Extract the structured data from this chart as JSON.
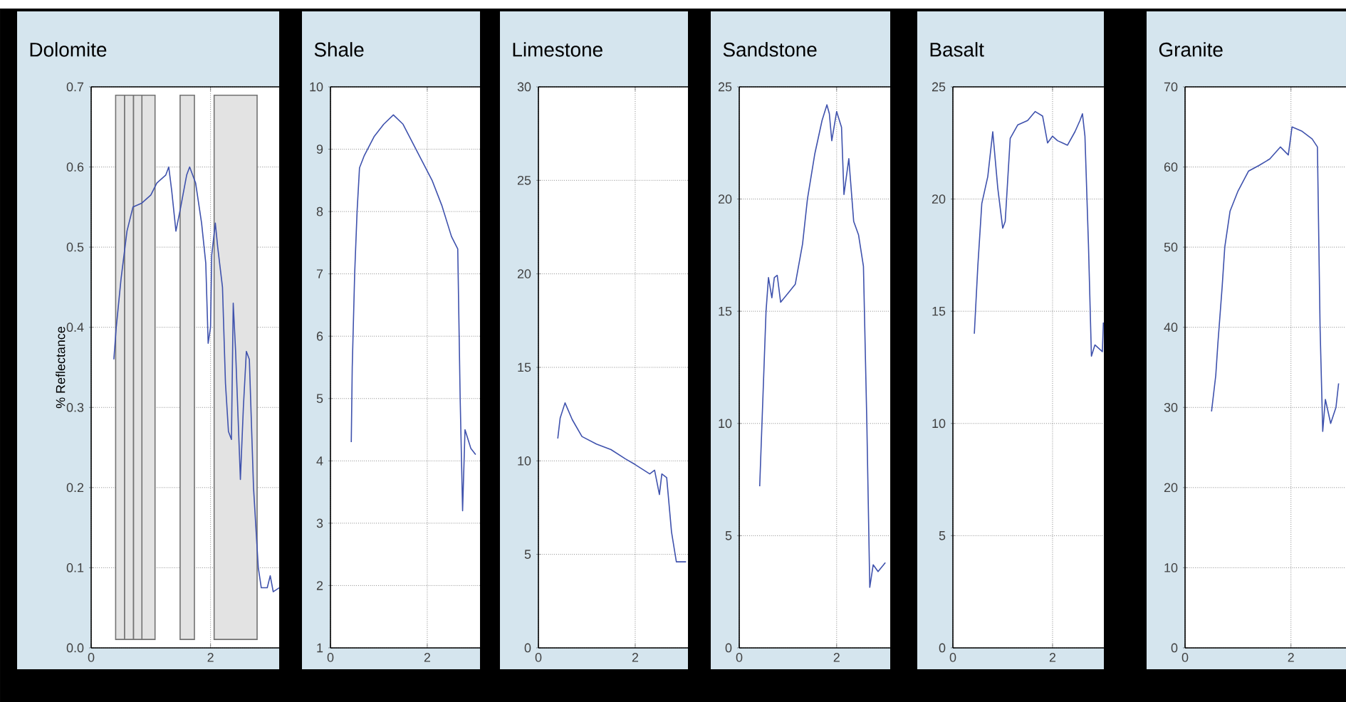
{
  "chart_data": [
    {
      "type": "line",
      "title": "Dolomite",
      "ylabel": "% Reflectance",
      "color": "#3f52ad",
      "grid": true,
      "xlim": [
        0,
        3.15
      ],
      "ylim": [
        0,
        0.7
      ],
      "xticks": [
        0,
        2
      ],
      "yticks": [
        {
          "value": 0,
          "label": "0.0"
        },
        0.1,
        0.2,
        0.3,
        0.4,
        0.5,
        0.6,
        0.7
      ],
      "bands": [
        {
          "axis": "x",
          "from": 0.41,
          "to": 0.56,
          "color": "#e3e3e3"
        },
        {
          "axis": "x",
          "from": 0.56,
          "to": 0.71,
          "color": "#e3e3e3"
        },
        {
          "axis": "x",
          "from": 0.71,
          "to": 0.9,
          "color": "#e3e3e3"
        },
        {
          "axis": "x",
          "from": 0.85,
          "to": 1.07,
          "color": "#e3e3e3"
        },
        {
          "axis": "x",
          "from": 1.49,
          "to": 1.73,
          "color": "#e3e3e3"
        },
        {
          "axis": "x",
          "from": 2.06,
          "to": 2.78,
          "color": "#e3e3e3"
        }
      ],
      "x": [
        0.38,
        0.42,
        0.5,
        0.6,
        0.7,
        0.85,
        1.0,
        1.1,
        1.25,
        1.3,
        1.35,
        1.42,
        1.5,
        1.6,
        1.65,
        1.75,
        1.85,
        1.92,
        1.96,
        2.0,
        2.02,
        2.08,
        2.12,
        2.2,
        2.25,
        2.3,
        2.35,
        2.38,
        2.42,
        2.5,
        2.55,
        2.6,
        2.65,
        2.72,
        2.8,
        2.85,
        2.95,
        3.0,
        3.05,
        3.15
      ],
      "values": [
        0.36,
        0.4,
        0.46,
        0.52,
        0.55,
        0.555,
        0.565,
        0.58,
        0.59,
        0.6,
        0.57,
        0.52,
        0.55,
        0.59,
        0.6,
        0.58,
        0.53,
        0.48,
        0.38,
        0.4,
        0.49,
        0.53,
        0.5,
        0.45,
        0.33,
        0.27,
        0.26,
        0.43,
        0.37,
        0.21,
        0.3,
        0.37,
        0.36,
        0.2,
        0.1,
        0.075,
        0.075,
        0.09,
        0.07,
        0.075
      ]
    },
    {
      "type": "line",
      "title": "Shale",
      "color": "#3f52ad",
      "grid": true,
      "xlim": [
        0,
        3.09
      ],
      "ylim": [
        1,
        10
      ],
      "xticks": [
        0,
        2
      ],
      "yticks": [
        1,
        2,
        3,
        4,
        5,
        6,
        7,
        8,
        9,
        10
      ],
      "x": [
        0.43,
        0.45,
        0.5,
        0.55,
        0.6,
        0.7,
        0.9,
        1.1,
        1.3,
        1.5,
        1.7,
        1.9,
        2.1,
        2.3,
        2.5,
        2.63,
        2.68,
        2.73,
        2.78,
        2.9,
        3.0
      ],
      "values": [
        4.3,
        5.5,
        7.0,
        8.0,
        8.7,
        8.9,
        9.2,
        9.4,
        9.55,
        9.4,
        9.1,
        8.8,
        8.5,
        8.1,
        7.6,
        7.4,
        5.0,
        3.2,
        4.5,
        4.2,
        4.1
      ]
    },
    {
      "type": "line",
      "title": "Limestone",
      "color": "#3f52ad",
      "grid": true,
      "xlim": [
        0,
        3.09
      ],
      "ylim": [
        0,
        30
      ],
      "xticks": [
        0,
        2
      ],
      "yticks": [
        0,
        5,
        10,
        15,
        20,
        25,
        30
      ],
      "x": [
        0.4,
        0.45,
        0.55,
        0.7,
        0.9,
        1.2,
        1.5,
        1.8,
        2.0,
        2.3,
        2.4,
        2.5,
        2.55,
        2.65,
        2.75,
        2.85,
        3.05
      ],
      "values": [
        11.2,
        12.3,
        13.1,
        12.2,
        11.3,
        10.9,
        10.6,
        10.1,
        9.8,
        9.3,
        9.5,
        8.2,
        9.3,
        9.1,
        6.2,
        4.6,
        4.6
      ]
    },
    {
      "type": "line",
      "title": "Sandstone",
      "color": "#3f52ad",
      "grid": true,
      "xlim": [
        0,
        3.1
      ],
      "ylim": [
        0,
        25
      ],
      "xticks": [
        0,
        2
      ],
      "yticks": [
        0,
        5,
        10,
        15,
        20,
        25
      ],
      "x": [
        0.42,
        0.5,
        0.55,
        0.6,
        0.67,
        0.72,
        0.78,
        0.85,
        1.0,
        1.15,
        1.3,
        1.4,
        1.55,
        1.7,
        1.8,
        1.85,
        1.9,
        2.0,
        2.1,
        2.15,
        2.25,
        2.35,
        2.45,
        2.55,
        2.62,
        2.68,
        2.75,
        2.85,
        3.0
      ],
      "values": [
        7.2,
        12,
        15,
        16.5,
        15.6,
        16.5,
        16.6,
        15.4,
        15.8,
        16.2,
        18,
        20,
        22,
        23.5,
        24.2,
        23.8,
        22.6,
        23.9,
        23.2,
        20.2,
        21.8,
        19,
        18.4,
        17,
        10,
        2.7,
        3.7,
        3.4,
        3.8
      ]
    },
    {
      "type": "line",
      "title": "Basalt",
      "color": "#3f52ad",
      "grid": true,
      "xlim": [
        0,
        3.03
      ],
      "ylim": [
        0,
        25
      ],
      "xticks": [
        0,
        2
      ],
      "yticks": [
        0,
        5,
        10,
        15,
        20,
        25
      ],
      "x": [
        0.43,
        0.5,
        0.58,
        0.7,
        0.8,
        0.9,
        1.0,
        1.05,
        1.15,
        1.3,
        1.5,
        1.65,
        1.8,
        1.9,
        2.0,
        2.1,
        2.2,
        2.3,
        2.45,
        2.55,
        2.6,
        2.65,
        2.72,
        2.78,
        2.85,
        3.0,
        3.02
      ],
      "values": [
        14,
        17,
        19.8,
        21,
        23,
        20.5,
        18.7,
        19,
        22.7,
        23.3,
        23.5,
        23.9,
        23.7,
        22.5,
        22.8,
        22.6,
        22.5,
        22.4,
        23.0,
        23.5,
        23.8,
        22.8,
        18,
        13,
        13.5,
        13.2,
        14.5
      ]
    },
    {
      "type": "line",
      "title": "Granite",
      "color": "#3f52ad",
      "grid": true,
      "xlim": [
        0,
        3.04
      ],
      "ylim": [
        0,
        70
      ],
      "xticks": [
        0,
        2
      ],
      "yticks": [
        0,
        10,
        20,
        30,
        40,
        50,
        60,
        70
      ],
      "x": [
        0.5,
        0.58,
        0.62,
        0.7,
        0.75,
        0.85,
        1.0,
        1.2,
        1.4,
        1.6,
        1.8,
        1.95,
        2.02,
        2.2,
        2.4,
        2.5,
        2.55,
        2.6,
        2.65,
        2.75,
        2.85,
        2.9
      ],
      "values": [
        29.5,
        34,
        38,
        45,
        50,
        54.5,
        57,
        59.5,
        60.2,
        61,
        62.5,
        61.5,
        65,
        64.5,
        63.5,
        62.5,
        40,
        27,
        31,
        28,
        30,
        33
      ]
    }
  ]
}
